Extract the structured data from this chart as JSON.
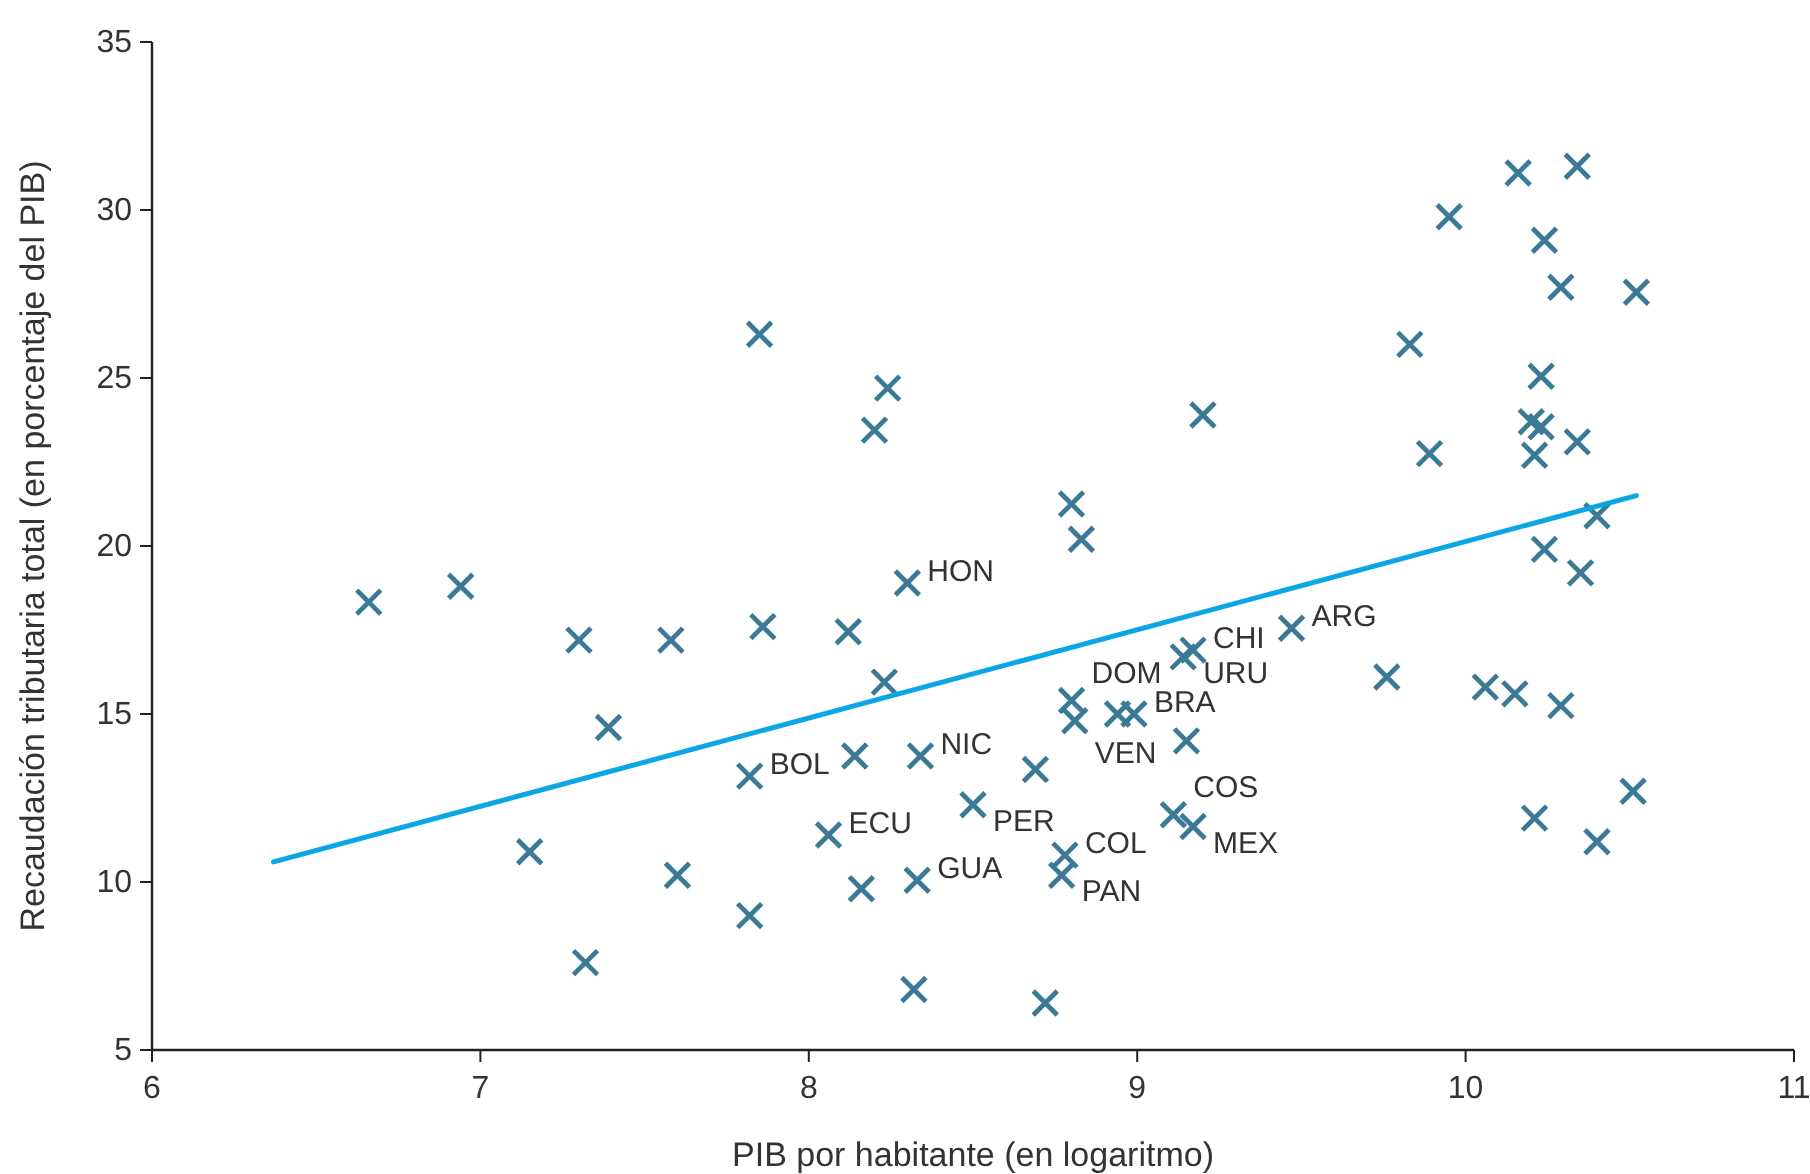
{
  "chart_data": {
    "type": "scatter",
    "xlabel": "PIB por habitante (en logaritmo)",
    "ylabel": "Recaudación tributaria total (en porcentaje del PIB)",
    "xlim": [
      6,
      11
    ],
    "ylim": [
      5,
      35
    ],
    "xticks": [
      6,
      7,
      8,
      9,
      10,
      11
    ],
    "yticks": [
      5,
      10,
      15,
      20,
      25,
      30,
      35
    ],
    "grid": false,
    "series": [
      {
        "color": "#3a7a96",
        "marker": "cross",
        "x": [
          6.66,
          6.94,
          7.15,
          7.3,
          7.32,
          7.39,
          7.58,
          7.6,
          7.82,
          7.82,
          7.85,
          7.86,
          8.06,
          8.12,
          8.14,
          8.16,
          8.2,
          8.23,
          8.24,
          8.3,
          8.32,
          8.33,
          8.34,
          8.5,
          8.69,
          8.72,
          8.77,
          8.78,
          8.8,
          8.81,
          8.8,
          8.83,
          8.94,
          8.99,
          9.11,
          9.14,
          9.15,
          9.17,
          9.17,
          9.2,
          9.47,
          9.76,
          9.83,
          9.89,
          9.95,
          10.06,
          10.15,
          10.16,
          10.2,
          10.21,
          10.21,
          10.23,
          10.23,
          10.24,
          10.24,
          10.29,
          10.29,
          10.34,
          10.34,
          10.35,
          10.4,
          10.4,
          10.51,
          10.52
        ],
        "values": [
          18.33,
          18.8,
          10.9,
          17.2,
          7.6,
          14.6,
          17.2,
          10.2,
          13.15,
          9.0,
          26.3,
          17.6,
          11.4,
          17.45,
          13.75,
          9.8,
          23.45,
          15.95,
          24.7,
          18.9,
          6.8,
          10.05,
          13.75,
          12.3,
          13.35,
          6.4,
          10.2,
          10.8,
          21.25,
          14.8,
          15.4,
          20.2,
          15.0,
          15.0,
          12.0,
          16.7,
          14.2,
          16.9,
          11.65,
          23.9,
          17.55,
          16.1,
          26.0,
          22.75,
          29.8,
          15.8,
          15.6,
          31.1,
          23.7,
          22.7,
          11.9,
          23.55,
          25.05,
          29.1,
          19.9,
          27.7,
          15.25,
          31.3,
          23.1,
          19.2,
          20.9,
          11.2,
          12.7,
          27.55
        ]
      },
      {
        "type": "line",
        "color": "#0aa6e6",
        "marker": "none",
        "line_style": "solid",
        "x": [
          6.37,
          10.52
        ],
        "values": [
          10.6,
          21.5
        ]
      }
    ],
    "annotations": [
      {
        "text": "HON",
        "x": 8.3,
        "y": 18.9
      },
      {
        "text": "NIC",
        "x": 8.34,
        "y": 13.75
      },
      {
        "text": "BOL",
        "x": 7.82,
        "y": 13.15
      },
      {
        "text": "ECU",
        "x": 8.06,
        "y": 11.4
      },
      {
        "text": "GUA",
        "x": 8.33,
        "y": 10.05
      },
      {
        "text": "PER",
        "x": 8.5,
        "y": 12.3
      },
      {
        "text": "COL",
        "x": 8.78,
        "y": 10.8
      },
      {
        "text": "PAN",
        "x": 8.77,
        "y": 10.2
      },
      {
        "text": "DOM",
        "x": 8.8,
        "y": 15.4
      },
      {
        "text": "VEN",
        "x": 8.81,
        "y": 14.8
      },
      {
        "text": "BRA",
        "x": 8.99,
        "y": 15.0
      },
      {
        "text": "CHI",
        "x": 9.17,
        "y": 16.9
      },
      {
        "text": "URU",
        "x": 9.14,
        "y": 16.7
      },
      {
        "text": "COS",
        "x": 9.11,
        "y": 12.0
      },
      {
        "text": "MEX",
        "x": 9.17,
        "y": 11.65
      },
      {
        "text": "ARG",
        "x": 9.47,
        "y": 17.55
      }
    ]
  }
}
